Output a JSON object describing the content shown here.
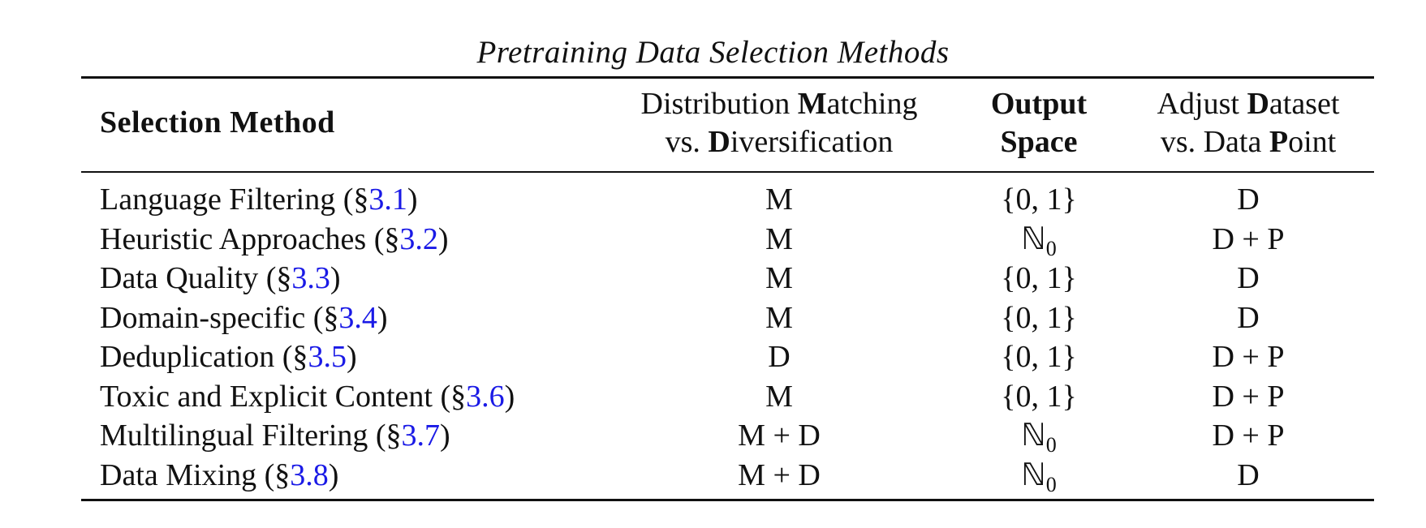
{
  "caption": "Pretraining Data Selection Methods",
  "header": {
    "method": "Selection Method",
    "col1_line1_pre": "Distribution ",
    "col1_line1_bold": "M",
    "col1_line1_post": "atching",
    "col1_line2_pre": "vs. ",
    "col1_line2_bold": "D",
    "col1_line2_post": "iversification",
    "col2_line1": "Output",
    "col2_line2": "Space",
    "col3_line1_pre": "Adjust ",
    "col3_line1_bold": "D",
    "col3_line1_post": "ataset",
    "col3_line2_pre": "vs. Data ",
    "col3_line2_bold": "P",
    "col3_line2_post": "oint"
  },
  "rows": [
    {
      "method": "Language Filtering",
      "ref": "3.1",
      "matching": "M",
      "output": "{0, 1}",
      "output_sub": "",
      "adjust": "D"
    },
    {
      "method": "Heuristic Approaches",
      "ref": "3.2",
      "matching": "M",
      "output": "ℕ",
      "output_sub": "0",
      "adjust": "D + P"
    },
    {
      "method": "Data Quality",
      "ref": "3.3",
      "matching": "M",
      "output": "{0, 1}",
      "output_sub": "",
      "adjust": "D"
    },
    {
      "method": "Domain-specific",
      "ref": "3.4",
      "matching": "M",
      "output": "{0, 1}",
      "output_sub": "",
      "adjust": "D"
    },
    {
      "method": "Deduplication",
      "ref": "3.5",
      "matching": "D",
      "output": "{0, 1}",
      "output_sub": "",
      "adjust": "D + P"
    },
    {
      "method": "Toxic and Explicit Content",
      "ref": "3.6",
      "matching": "M",
      "output": "{0, 1}",
      "output_sub": "",
      "adjust": "D + P"
    },
    {
      "method": "Multilingual Filtering",
      "ref": "3.7",
      "matching": "M + D",
      "output": "ℕ",
      "output_sub": "0",
      "adjust": "D + P"
    },
    {
      "method": "Data Mixing",
      "ref": "3.8",
      "matching": "M + D",
      "output": "ℕ",
      "output_sub": "0",
      "adjust": "D"
    }
  ]
}
